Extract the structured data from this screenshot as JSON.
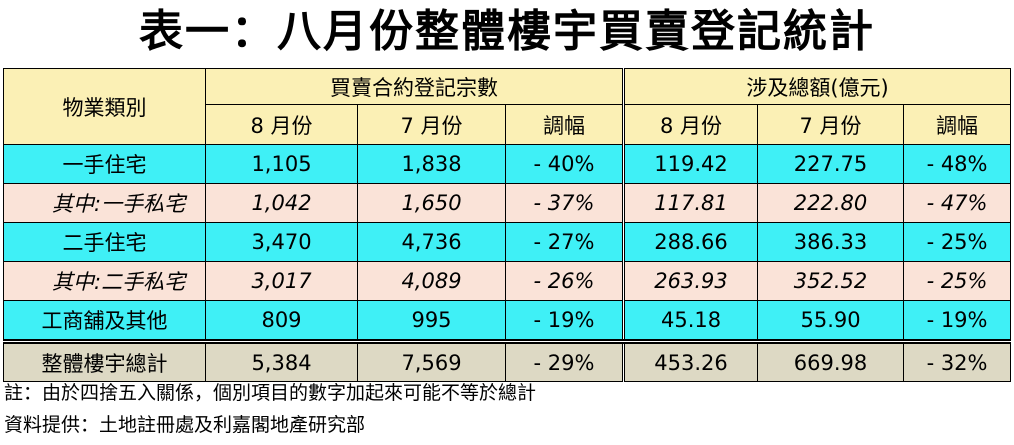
{
  "title": "表一：八月份整體樓宇買賣登記統計",
  "table": {
    "header": {
      "category": "物業類別",
      "group1": "買賣合約登記宗數",
      "group2": "涉及總額(億元)",
      "columns": [
        "8 月份",
        "7 月份",
        "調幅",
        "8 月份",
        "7 月份",
        "調幅"
      ]
    },
    "rows": [
      [
        "一手住宅",
        "1,105",
        "1,838",
        "- 40%",
        "119.42",
        "227.75",
        "- 48%"
      ],
      [
        "其中:一手私宅",
        "1,042",
        "1,650",
        "- 37%",
        "117.81",
        "222.80",
        "- 47%"
      ],
      [
        "二手住宅",
        "3,470",
        "4,736",
        "- 27%",
        "288.66",
        "386.33",
        "- 25%"
      ],
      [
        "其中:二手私宅",
        "3,017",
        "4,089",
        "- 26%",
        "263.93",
        "352.52",
        "- 25%"
      ],
      [
        "工商舖及其他",
        "809",
        "995",
        "- 19%",
        "45.18",
        "55.90",
        "- 19%"
      ],
      [
        "整體樓宇總計",
        "5,384",
        "7,569",
        "- 29%",
        "453.26",
        "669.98",
        "- 32%"
      ]
    ]
  },
  "notes": [
    "註：由於四捨五入關係，個別項目的數字加起來可能不等於總計",
    "資料提供：土地註冊處及利嘉閣地產研究部"
  ]
}
